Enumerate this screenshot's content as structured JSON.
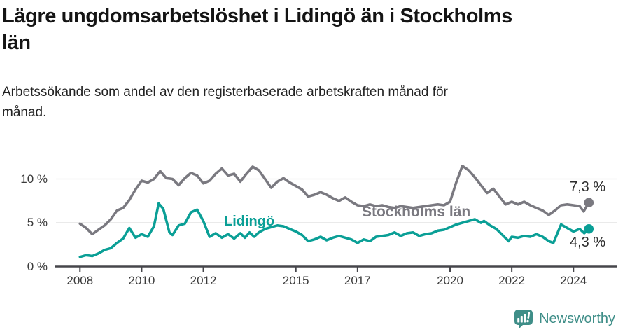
{
  "header": {
    "title_lines": [
      "Lägre ungdomsarbetslöshet i Lidingö än i Stockholms",
      "län"
    ],
    "subtitle_lines": [
      "Arbetssökande som andel av den registerbaserade arbetskraften månad för",
      "månad."
    ]
  },
  "chart_data": {
    "type": "line",
    "unit": "%",
    "grid": "horizontal gridlines at 5 % and 10 %",
    "legend_position": "inline labels on lines",
    "x_axis": {
      "min": 2008,
      "max": 2024.6,
      "ticks": [
        {
          "label": "2008",
          "year": 2008
        },
        {
          "label": "2010",
          "year": 2010
        },
        {
          "label": "2012",
          "year": 2012
        },
        {
          "label": "2015",
          "year": 2015
        },
        {
          "label": "2017",
          "year": 2017
        },
        {
          "label": "2020",
          "year": 2020
        },
        {
          "label": "2022",
          "year": 2022
        },
        {
          "label": "2024",
          "year": 2024
        }
      ]
    },
    "y_axis": {
      "min": 0,
      "max": 13,
      "ticks": [
        {
          "label": "0 %",
          "value": 0
        },
        {
          "label": "5 %",
          "value": 5
        },
        {
          "label": "10 %",
          "value": 10
        }
      ]
    },
    "series": [
      {
        "name": "Stockholms län",
        "color": "#7a7980",
        "end_label": "7,3 %",
        "end_value": 7.3,
        "points": [
          [
            2008.0,
            4.9
          ],
          [
            2008.2,
            4.4
          ],
          [
            2008.4,
            3.7
          ],
          [
            2008.6,
            4.2
          ],
          [
            2008.8,
            4.7
          ],
          [
            2009.0,
            5.4
          ],
          [
            2009.2,
            6.4
          ],
          [
            2009.4,
            6.7
          ],
          [
            2009.6,
            7.6
          ],
          [
            2009.8,
            8.8
          ],
          [
            2010.0,
            9.8
          ],
          [
            2010.2,
            9.6
          ],
          [
            2010.4,
            10.0
          ],
          [
            2010.6,
            10.9
          ],
          [
            2010.8,
            10.1
          ],
          [
            2011.0,
            10.0
          ],
          [
            2011.2,
            9.3
          ],
          [
            2011.4,
            10.1
          ],
          [
            2011.6,
            10.7
          ],
          [
            2011.8,
            10.4
          ],
          [
            2012.0,
            9.5
          ],
          [
            2012.2,
            9.8
          ],
          [
            2012.4,
            10.6
          ],
          [
            2012.6,
            11.2
          ],
          [
            2012.8,
            10.4
          ],
          [
            2013.0,
            10.6
          ],
          [
            2013.2,
            9.7
          ],
          [
            2013.4,
            10.6
          ],
          [
            2013.6,
            11.4
          ],
          [
            2013.8,
            11.0
          ],
          [
            2014.0,
            10.0
          ],
          [
            2014.2,
            9.0
          ],
          [
            2014.4,
            9.7
          ],
          [
            2014.6,
            10.1
          ],
          [
            2014.8,
            9.6
          ],
          [
            2015.0,
            9.2
          ],
          [
            2015.2,
            8.8
          ],
          [
            2015.4,
            8.0
          ],
          [
            2015.6,
            8.2
          ],
          [
            2015.8,
            8.5
          ],
          [
            2016.0,
            8.2
          ],
          [
            2016.2,
            7.8
          ],
          [
            2016.4,
            7.5
          ],
          [
            2016.6,
            7.9
          ],
          [
            2016.8,
            7.4
          ],
          [
            2017.0,
            7.0
          ],
          [
            2017.2,
            6.9
          ],
          [
            2017.4,
            7.1
          ],
          [
            2017.6,
            6.9
          ],
          [
            2017.8,
            7.0
          ],
          [
            2018.0,
            6.8
          ],
          [
            2018.2,
            6.7
          ],
          [
            2018.4,
            6.9
          ],
          [
            2018.6,
            6.8
          ],
          [
            2018.8,
            6.7
          ],
          [
            2019.0,
            6.8
          ],
          [
            2019.2,
            6.9
          ],
          [
            2019.4,
            7.0
          ],
          [
            2019.6,
            7.1
          ],
          [
            2019.8,
            7.0
          ],
          [
            2020.0,
            7.4
          ],
          [
            2020.2,
            9.6
          ],
          [
            2020.4,
            11.5
          ],
          [
            2020.6,
            11.0
          ],
          [
            2020.8,
            10.2
          ],
          [
            2021.0,
            9.3
          ],
          [
            2021.2,
            8.4
          ],
          [
            2021.4,
            8.9
          ],
          [
            2021.6,
            8.0
          ],
          [
            2021.8,
            7.1
          ],
          [
            2022.0,
            7.4
          ],
          [
            2022.2,
            7.1
          ],
          [
            2022.4,
            7.4
          ],
          [
            2022.6,
            7.0
          ],
          [
            2022.8,
            6.7
          ],
          [
            2023.0,
            6.4
          ],
          [
            2023.2,
            5.9
          ],
          [
            2023.4,
            6.4
          ],
          [
            2023.6,
            7.0
          ],
          [
            2023.8,
            7.1
          ],
          [
            2024.0,
            7.0
          ],
          [
            2024.2,
            6.9
          ],
          [
            2024.33,
            6.3
          ],
          [
            2024.5,
            7.3
          ]
        ]
      },
      {
        "name": "Lidingö",
        "color": "#0a9f96",
        "end_label": "4,3 %",
        "end_value": 4.3,
        "points": [
          [
            2008.0,
            1.1
          ],
          [
            2008.2,
            1.3
          ],
          [
            2008.4,
            1.2
          ],
          [
            2008.6,
            1.5
          ],
          [
            2008.8,
            1.9
          ],
          [
            2009.0,
            2.1
          ],
          [
            2009.2,
            2.7
          ],
          [
            2009.4,
            3.2
          ],
          [
            2009.6,
            4.4
          ],
          [
            2009.8,
            3.3
          ],
          [
            2010.0,
            3.7
          ],
          [
            2010.2,
            3.4
          ],
          [
            2010.4,
            4.6
          ],
          [
            2010.55,
            7.2
          ],
          [
            2010.7,
            6.6
          ],
          [
            2010.9,
            3.9
          ],
          [
            2011.0,
            3.6
          ],
          [
            2011.2,
            4.7
          ],
          [
            2011.4,
            4.9
          ],
          [
            2011.6,
            6.2
          ],
          [
            2011.8,
            6.5
          ],
          [
            2012.0,
            5.2
          ],
          [
            2012.2,
            3.4
          ],
          [
            2012.4,
            3.8
          ],
          [
            2012.6,
            3.3
          ],
          [
            2012.8,
            3.7
          ],
          [
            2013.0,
            3.2
          ],
          [
            2013.2,
            3.8
          ],
          [
            2013.35,
            3.3
          ],
          [
            2013.5,
            3.9
          ],
          [
            2013.65,
            3.4
          ],
          [
            2013.8,
            3.9
          ],
          [
            2014.0,
            4.3
          ],
          [
            2014.2,
            4.5
          ],
          [
            2014.4,
            4.7
          ],
          [
            2014.6,
            4.6
          ],
          [
            2014.8,
            4.3
          ],
          [
            2015.0,
            4.0
          ],
          [
            2015.2,
            3.6
          ],
          [
            2015.4,
            2.9
          ],
          [
            2015.6,
            3.1
          ],
          [
            2015.8,
            3.4
          ],
          [
            2016.0,
            3.0
          ],
          [
            2016.2,
            3.3
          ],
          [
            2016.4,
            3.5
          ],
          [
            2016.6,
            3.3
          ],
          [
            2016.8,
            3.1
          ],
          [
            2017.0,
            2.7
          ],
          [
            2017.2,
            3.1
          ],
          [
            2017.4,
            2.9
          ],
          [
            2017.6,
            3.4
          ],
          [
            2017.8,
            3.5
          ],
          [
            2018.0,
            3.6
          ],
          [
            2018.2,
            3.9
          ],
          [
            2018.4,
            3.5
          ],
          [
            2018.6,
            3.8
          ],
          [
            2018.8,
            3.9
          ],
          [
            2019.0,
            3.5
          ],
          [
            2019.2,
            3.7
          ],
          [
            2019.4,
            3.8
          ],
          [
            2019.6,
            4.1
          ],
          [
            2019.8,
            4.2
          ],
          [
            2020.0,
            4.5
          ],
          [
            2020.2,
            4.8
          ],
          [
            2020.4,
            5.0
          ],
          [
            2020.6,
            5.2
          ],
          [
            2020.8,
            5.4
          ],
          [
            2021.0,
            5.0
          ],
          [
            2021.1,
            5.2
          ],
          [
            2021.3,
            4.7
          ],
          [
            2021.5,
            4.3
          ],
          [
            2021.7,
            3.6
          ],
          [
            2021.9,
            2.9
          ],
          [
            2022.0,
            3.4
          ],
          [
            2022.2,
            3.3
          ],
          [
            2022.4,
            3.5
          ],
          [
            2022.6,
            3.4
          ],
          [
            2022.8,
            3.7
          ],
          [
            2023.0,
            3.4
          ],
          [
            2023.2,
            2.9
          ],
          [
            2023.35,
            2.7
          ],
          [
            2023.6,
            4.8
          ],
          [
            2023.8,
            4.4
          ],
          [
            2024.0,
            4.0
          ],
          [
            2024.2,
            4.3
          ],
          [
            2024.35,
            3.8
          ],
          [
            2024.5,
            4.3
          ]
        ]
      }
    ]
  },
  "footer": {
    "brand": "Newsworthy",
    "brand_color": "#3f8e88",
    "brand_icon": "newsworthy-speech-bubble-chart-icon"
  }
}
